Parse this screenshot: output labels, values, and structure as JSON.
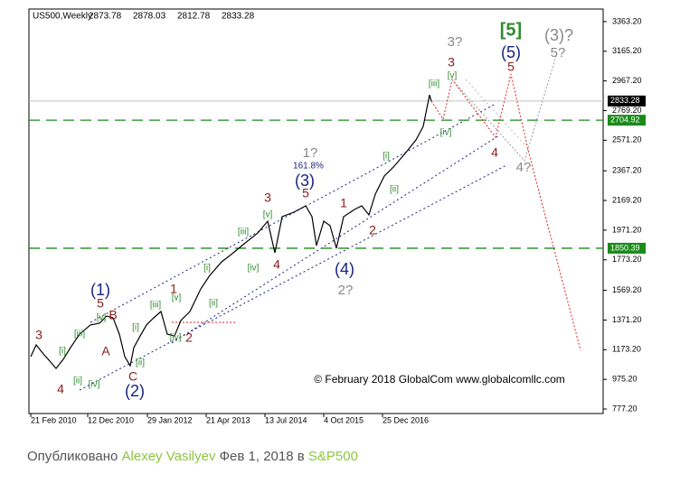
{
  "chart_data": {
    "type": "line",
    "title": "US500,Weekly",
    "ohlc": [
      2873.78,
      2878.03,
      2812.78,
      2833.28
    ],
    "series": [
      {
        "color": "#000000",
        "x": [
          0,
          6,
          14,
          21,
          28,
          36,
          44,
          54,
          66,
          76,
          84,
          91,
          98,
          104,
          110,
          114,
          121,
          128,
          136,
          144,
          151,
          159,
          166,
          176,
          188,
          198,
          211,
          224,
          236,
          251,
          262,
          270,
          278,
          291,
          304,
          311,
          316,
          324,
          331,
          338,
          346,
          358,
          366,
          374,
          381,
          391,
          401,
          414,
          426,
          434,
          441,
          443
        ],
        "values": [
          1127,
          1205,
          1145,
          1097,
          1048,
          1109,
          1187,
          1277,
          1338,
          1350,
          1398,
          1386,
          1277,
          1127,
          1066,
          1187,
          1265,
          1338,
          1386,
          1428,
          1277,
          1265,
          1368,
          1428,
          1579,
          1669,
          1759,
          1820,
          1880,
          1952,
          2031,
          1820,
          2061,
          2091,
          2133,
          2061,
          1868,
          2031,
          2001,
          1850,
          2061,
          2109,
          2133,
          2073,
          2211,
          2332,
          2392,
          2483,
          2573,
          2663,
          2874,
          2832
        ]
      },
      {
        "color": "#e02020",
        "x": [
          443,
          456,
          466,
          514,
          531,
          551,
          608
        ],
        "values": [
          2832,
          2712,
          2977,
          2591,
          3013,
          2483,
          1169
        ]
      },
      {
        "color": "#9a9a9a",
        "x": [
          466,
          546,
          581
        ],
        "values": [
          2977,
          2434,
          3134
        ]
      }
    ],
    "xlim": [
      -2,
      631
    ],
    "xticks": [
      {
        "value": 0,
        "label": "21 Feb 2010"
      },
      {
        "value": 63,
        "label": "12 Dec 2010"
      },
      {
        "value": 129,
        "label": "29 Jan 2012"
      },
      {
        "value": 194,
        "label": "21 Apr 2013"
      },
      {
        "value": 259,
        "label": "13 Jul 2014"
      },
      {
        "value": 324,
        "label": "4 Oct 2015"
      },
      {
        "value": 389,
        "label": "25 Dec 2016"
      }
    ],
    "ylim": [
      735,
      3447
    ],
    "yticks": [
      {
        "value": 3363.2,
        "label": "3363.20"
      },
      {
        "value": 3165.2,
        "label": "3165.20"
      },
      {
        "value": 2967.2,
        "label": "2967.20"
      },
      {
        "value": 2769.2,
        "label": "2769.20"
      },
      {
        "value": 2571.2,
        "label": "2571.20"
      },
      {
        "value": 2367.2,
        "label": "2367.20"
      },
      {
        "value": 2169.2,
        "label": "2169.20"
      },
      {
        "value": 1971.2,
        "label": "1971.20"
      },
      {
        "value": 1773.2,
        "label": "1773.20"
      },
      {
        "value": 1569.2,
        "label": "1569.20"
      },
      {
        "value": 1371.2,
        "label": "1371.20"
      },
      {
        "value": 1173.2,
        "label": "1173.20"
      },
      {
        "value": 975.2,
        "label": "975.20"
      },
      {
        "value": 777.2,
        "label": "777.20"
      }
    ],
    "last_price": {
      "value": 2833.28,
      "color": "#000000"
    },
    "levels": [
      {
        "value": 2704.92,
        "color": "#1a8a1a"
      },
      {
        "value": 1850.39,
        "color": "#1a8a1a"
      }
    ],
    "annotations": [
      {
        "text": "3",
        "color": "#8b1a1a"
      },
      {
        "text": "4",
        "color": "#8b1a1a"
      },
      {
        "text": "[i]",
        "color": "#2e8b2e"
      },
      {
        "text": "[ii]",
        "color": "#2e8b2e"
      },
      {
        "text": "[iii]",
        "color": "#2e8b2e"
      },
      {
        "text": "[iv]",
        "color": "#2e8b2e"
      },
      {
        "text": "[v]",
        "color": "#2e8b2e"
      },
      {
        "text": "(1)",
        "color": "#1a237e"
      },
      {
        "text": "5",
        "color": "#8b1a1a"
      },
      {
        "text": "B",
        "color": "#8b1a1a"
      },
      {
        "text": "A",
        "color": "#8b1a1a"
      },
      {
        "text": "C",
        "color": "#8b1a1a"
      },
      {
        "text": "(2)",
        "color": "#1a237e"
      },
      {
        "text": "[ii]",
        "color": "#2e8b2e"
      },
      {
        "text": "[i]",
        "color": "#2e8b2e"
      },
      {
        "text": "[iii]",
        "color": "#2e8b2e"
      },
      {
        "text": "[v]",
        "color": "#2e8b2e"
      },
      {
        "text": "1",
        "color": "#8b1a1a"
      },
      {
        "text": "[iv]",
        "color": "#2e8b2e"
      },
      {
        "text": "2",
        "color": "#8b1a1a"
      },
      {
        "text": "[ii]",
        "color": "#2e8b2e"
      },
      {
        "text": "[i]",
        "color": "#2e8b2e"
      },
      {
        "text": "[iii]",
        "color": "#2e8b2e"
      },
      {
        "text": "[iv]",
        "color": "#2e8b2e"
      },
      {
        "text": "[v]",
        "color": "#2e8b2e"
      },
      {
        "text": "3",
        "color": "#8b1a1a"
      },
      {
        "text": "4",
        "color": "#8b1a1a"
      },
      {
        "text": "(3)",
        "color": "#1a237e"
      },
      {
        "text": "5",
        "color": "#8b1a1a"
      },
      {
        "text": "1?",
        "color": "#888888"
      },
      {
        "text": "161.8%",
        "color": "#1a237e"
      },
      {
        "text": "1",
        "color": "#8b1a1a"
      },
      {
        "text": "2",
        "color": "#8b1a1a"
      },
      {
        "text": "(4)",
        "color": "#1a237e"
      },
      {
        "text": "2?",
        "color": "#888888"
      },
      {
        "text": "[i]",
        "color": "#2e8b2e"
      },
      {
        "text": "[ii]",
        "color": "#2e8b2e"
      },
      {
        "text": "[iii]",
        "color": "#2e8b2e"
      },
      {
        "text": "[iv]",
        "color": "#2e8b2e"
      },
      {
        "text": "[v]",
        "color": "#2e8b2e"
      },
      {
        "text": "3",
        "color": "#8b1a1a"
      },
      {
        "text": "3?",
        "color": "#888888"
      },
      {
        "text": "[5]",
        "color": "#2e8b2e"
      },
      {
        "text": "(5)",
        "color": "#1a237e"
      },
      {
        "text": "5",
        "color": "#8b1a1a"
      },
      {
        "text": "(3)?",
        "color": "#888888"
      },
      {
        "text": "5?",
        "color": "#888888"
      },
      {
        "text": "4",
        "color": "#8b1a1a"
      },
      {
        "text": "4?",
        "color": "#888888"
      }
    ],
    "copyright": "© February 2018 GlobalCom www.globalcomllc.com"
  },
  "footer": {
    "prefix": "Опубликовано",
    "author": "Alexey Vasilyev",
    "date": "Фев 1, 2018 в",
    "category": "S&P500"
  }
}
